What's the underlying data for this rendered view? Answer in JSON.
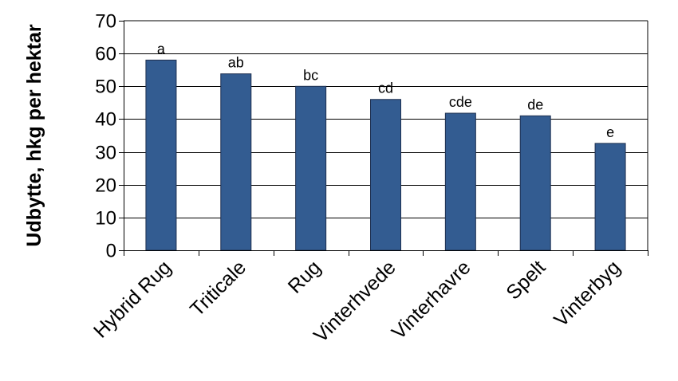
{
  "chart_data": {
    "type": "bar",
    "title": "",
    "xlabel": "",
    "ylabel": "Udbytte, hkg per hektar",
    "ylim": [
      0,
      70
    ],
    "yticks": [
      0,
      10,
      20,
      30,
      40,
      50,
      60,
      70
    ],
    "grid": true,
    "categories": [
      "Hybrid Rug",
      "Triticale",
      "Rug",
      "Vinterhvede",
      "Vinterhavre",
      "Spelt",
      "Vinterbyg"
    ],
    "values": [
      58,
      53.8,
      50,
      46,
      41.8,
      41,
      32.6
    ],
    "data_labels": [
      "a",
      "ab",
      "bc",
      "cd",
      "cde",
      "de",
      "e"
    ],
    "bar_color": "#335C91"
  }
}
